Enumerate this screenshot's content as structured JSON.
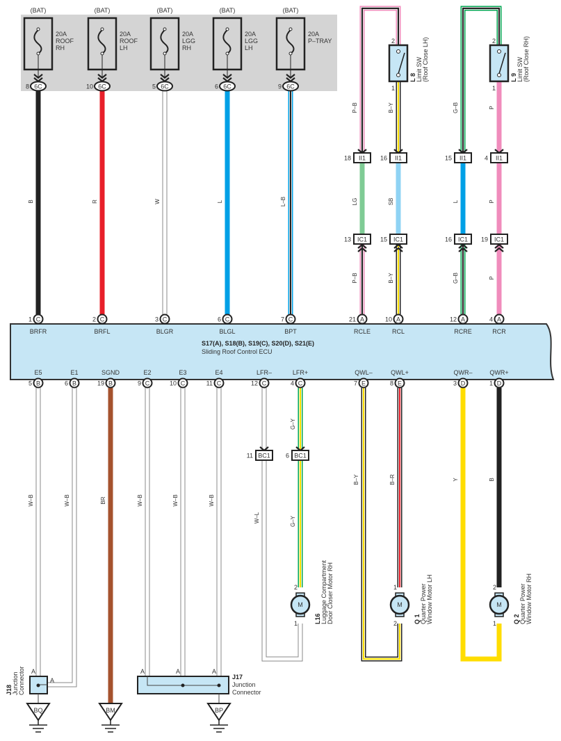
{
  "wire_colors": {
    "B": "#222222",
    "R": "#e8202a",
    "W": "#ffffff",
    "L": "#00a0e6",
    "P": "#f08cbc",
    "G": "#00a651",
    "Y": "#ffdd00",
    "SB": "#8fd3f4",
    "LG": "#7fcb95",
    "BR": "#a5522e"
  },
  "component_fill": "#c6e6f5",
  "fuses": [
    {
      "source": "(BAT)",
      "amp": "20A",
      "name1": "ROOF",
      "name2": "RH",
      "pin": "8",
      "conn": "6C",
      "wire": "B"
    },
    {
      "source": "(BAT)",
      "amp": "20A",
      "name1": "ROOF",
      "name2": "LH",
      "pin": "10",
      "conn": "6C",
      "wire": "R"
    },
    {
      "source": "(BAT)",
      "amp": "20A",
      "name1": "LGG",
      "name2": "RH",
      "pin": "5",
      "conn": "6C",
      "wire": "W"
    },
    {
      "source": "(BAT)",
      "amp": "20A",
      "name1": "LGG",
      "name2": "LH",
      "pin": "6",
      "conn": "6C",
      "wire": "L"
    },
    {
      "source": "(BAT)",
      "amp": "20A",
      "name1": "P–TRAY",
      "name2": "",
      "pin": "9",
      "conn": "6C",
      "wire": "L–B"
    }
  ],
  "switches": [
    {
      "id": "L 8",
      "name": "Limit SW",
      "detail": "(Roof Close LH)",
      "pin_top": "2",
      "pin_bottom": "1",
      "loop_wire": "P–B",
      "out_wire": "B–Y"
    },
    {
      "id": "L 9",
      "name": "Limit SW",
      "detail": "(Roof Close RH)",
      "pin_top": "2",
      "pin_bottom": "1",
      "loop_wire": "G–B",
      "out_wire": "P"
    }
  ],
  "ii1": {
    "conn": "II1",
    "pins": [
      "18",
      "16",
      "15",
      "4"
    ]
  },
  "mid_wires": [
    "LG",
    "SB",
    "L",
    "P"
  ],
  "ic1": {
    "conn": "IC1",
    "pins": [
      "13",
      "15",
      "16",
      "19"
    ]
  },
  "low_wires": [
    "P–B",
    "B–Y",
    "G–B",
    "P"
  ],
  "ecu": {
    "title": "S17(A), S18(B), S19(C), S20(D), S21(E)",
    "subtitle": "Sliding Roof Control ECU",
    "top_pins": [
      {
        "pin": "1",
        "conn": "C",
        "name": "BRFR"
      },
      {
        "pin": "2",
        "conn": "C",
        "name": "BRFL"
      },
      {
        "pin": "3",
        "conn": "C",
        "name": "BLGR"
      },
      {
        "pin": "6",
        "conn": "C",
        "name": "BLGL"
      },
      {
        "pin": "7",
        "conn": "C",
        "name": "BPT"
      },
      {
        "pin": "21",
        "conn": "A",
        "name": "RCLE"
      },
      {
        "pin": "10",
        "conn": "A",
        "name": "RCL"
      },
      {
        "pin": "12",
        "conn": "A",
        "name": "RCRE"
      },
      {
        "pin": "4",
        "conn": "A",
        "name": "RCR"
      }
    ],
    "bottom_pins": [
      {
        "pin": "5",
        "conn": "B",
        "name": "E5",
        "wire": "W–B"
      },
      {
        "pin": "6",
        "conn": "B",
        "name": "E1",
        "wire": "W–B"
      },
      {
        "pin": "19",
        "conn": "B",
        "name": "SGND",
        "wire": "BR"
      },
      {
        "pin": "9",
        "conn": "C",
        "name": "E2",
        "wire": "W–B"
      },
      {
        "pin": "10",
        "conn": "C",
        "name": "E3",
        "wire": "W–B"
      },
      {
        "pin": "11",
        "conn": "C",
        "name": "E4",
        "wire": "W–B"
      },
      {
        "pin": "12",
        "conn": "C",
        "name": "LFR–",
        "wire": "W–L"
      },
      {
        "pin": "4",
        "conn": "C",
        "name": "LFR+",
        "wire": "G–Y"
      },
      {
        "pin": "7",
        "conn": "E",
        "name": "QWL–",
        "wire": "B–Y"
      },
      {
        "pin": "8",
        "conn": "E",
        "name": "QWL+",
        "wire": "B–R"
      },
      {
        "pin": "3",
        "conn": "D",
        "name": "QWR–",
        "wire": "Y"
      },
      {
        "pin": "1",
        "conn": "D",
        "name": "QWR+",
        "wire": "B"
      }
    ]
  },
  "bc1": {
    "conn": "BC1",
    "pins": [
      "11",
      "6"
    ]
  },
  "motors": [
    {
      "id": "L16",
      "line1": "Luggage Compartment",
      "line2": "Door Closer Motor RH",
      "symbol": "M",
      "pin_top": "2",
      "pin_bottom": "1"
    },
    {
      "id": "Q 1",
      "line1": "Quarter Power",
      "line2": "Window Motor LH",
      "symbol": "M",
      "pin_top": "1",
      "pin_bottom": "2"
    },
    {
      "id": "Q 2",
      "line1": "Quarter Power",
      "line2": "Window Motor RH",
      "symbol": "M",
      "pin_top": "2",
      "pin_bottom": "1"
    }
  ],
  "junctions": [
    {
      "id": "J18",
      "line1": "Junction",
      "line2": "Connector",
      "pins": [
        "A",
        "A"
      ]
    },
    {
      "id": "J17",
      "line1": "Junction",
      "line2": "Connector",
      "pins": [
        "A",
        "A",
        "A"
      ]
    }
  ],
  "grounds": [
    "BQ",
    "BM",
    "BP"
  ]
}
